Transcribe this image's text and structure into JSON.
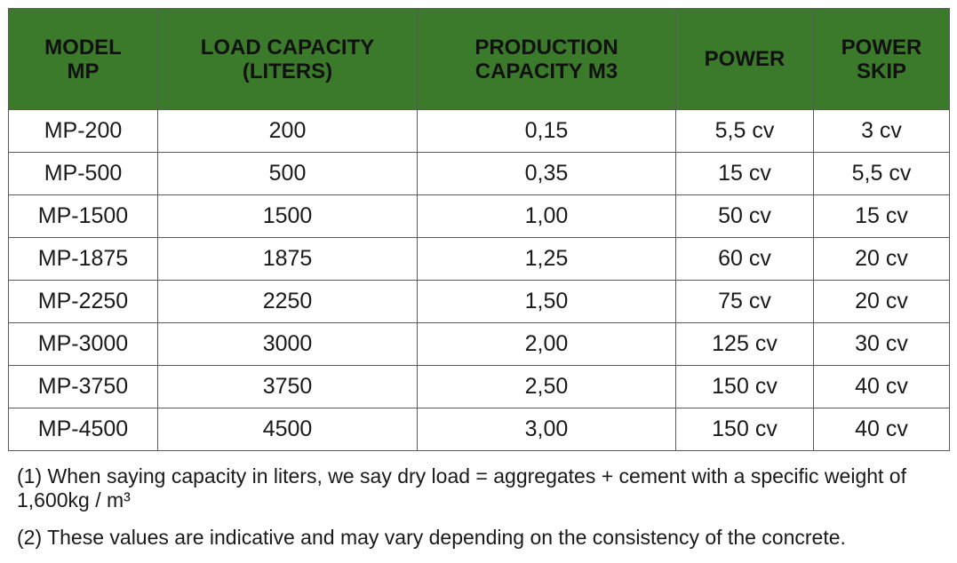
{
  "table": {
    "headers": [
      {
        "lines": [
          "MODEL",
          "MP"
        ]
      },
      {
        "lines": [
          "LOAD CAPACITY",
          "(LITERS)"
        ]
      },
      {
        "lines": [
          "PRODUCTION",
          "CAPACITY M3"
        ]
      },
      {
        "lines": [
          "POWER"
        ]
      },
      {
        "lines": [
          "POWER",
          "SKIP"
        ]
      }
    ],
    "rows": [
      [
        "MP-200",
        "200",
        "0,15",
        "5,5 cv",
        "3 cv"
      ],
      [
        "MP-500",
        "500",
        "0,35",
        "15 cv",
        "5,5 cv"
      ],
      [
        "MP-1500",
        "1500",
        "1,00",
        "50 cv",
        "15 cv"
      ],
      [
        "MP-1875",
        "1875",
        "1,25",
        "60 cv",
        "20 cv"
      ],
      [
        "MP-2250",
        "2250",
        "1,50",
        "75 cv",
        "20 cv"
      ],
      [
        "MP-3000",
        "3000",
        "2,00",
        "125 cv",
        "30 cv"
      ],
      [
        "MP-3750",
        "3750",
        "2,50",
        "150 cv",
        "40 cv"
      ],
      [
        "MP-4500",
        "4500",
        "3,00",
        "150 cv",
        "40 cv"
      ]
    ]
  },
  "notes": {
    "note1": "(1) When saying capacity in liters, we say dry load = aggregates + cement with a specific weight of 1,600kg / m³",
    "note2": "(2) These values are indicative and may vary depending on the consistency of the concrete."
  },
  "colors": {
    "header_background": "#3a7a2a",
    "border": "#5a5a5a"
  }
}
